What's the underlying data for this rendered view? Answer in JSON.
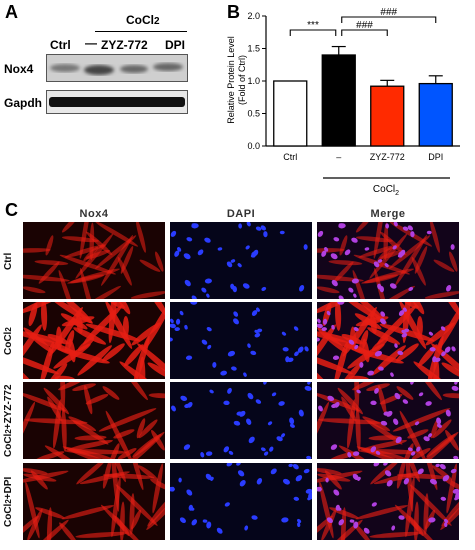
{
  "panel_a": {
    "letter": "A",
    "treatment_header": "CoCl2",
    "lane_labels": [
      "Ctrl",
      "—",
      "ZYZ-772",
      "DPI"
    ],
    "row_labels": [
      "Nox4",
      "Gapdh"
    ]
  },
  "panel_b": {
    "letter": "B",
    "chart_data": {
      "type": "bar",
      "categories": [
        "Ctrl",
        "–",
        "ZYZ-772",
        "DPI"
      ],
      "values": [
        1.0,
        1.4,
        0.92,
        0.96
      ],
      "errors": [
        0.0,
        0.13,
        0.09,
        0.12
      ],
      "colors": [
        "#ffffff",
        "#000000",
        "#ff2a00",
        "#0055ff"
      ],
      "ylabel": "Relative Protein Level (Fold of Ctrl)",
      "ylabel_line1": "Relative Protein Level",
      "ylabel_line2": "(Fold of Ctrl)",
      "ylim": [
        0,
        2.0
      ],
      "yticks": [
        0.0,
        0.5,
        1.0,
        1.5,
        2.0
      ],
      "ytick_labels": [
        "0.0",
        "0.5",
        "1.0",
        "1.5",
        "2.0"
      ],
      "group_label": "CoCl2",
      "significance": [
        "***",
        "###",
        "###"
      ]
    }
  },
  "panel_c": {
    "letter": "C",
    "columns": [
      "Nox4",
      "DAPI",
      "Merge"
    ],
    "rows": [
      "Ctrl",
      "CoCl2",
      "CoCl2+ZYZ-772",
      "CoCl2+DPI"
    ]
  }
}
